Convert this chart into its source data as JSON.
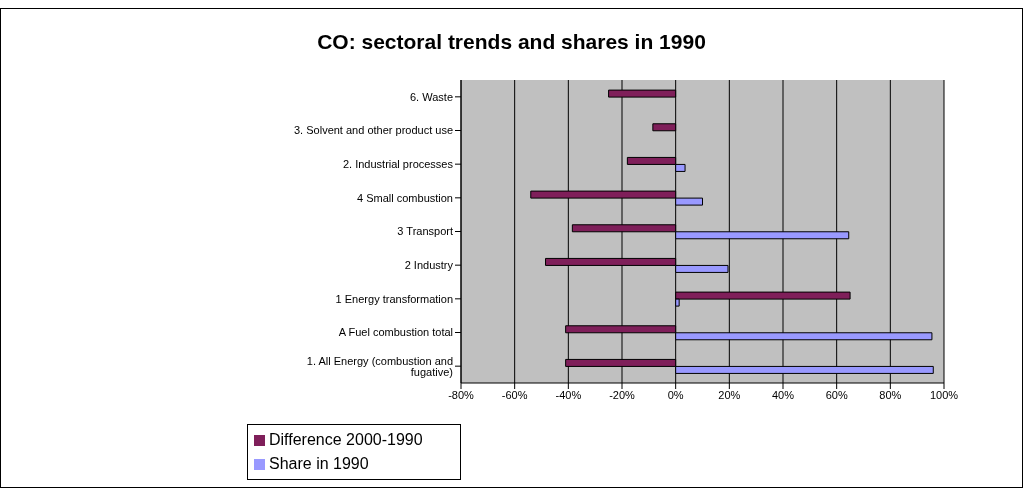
{
  "chart_data": {
    "type": "bar",
    "orientation": "horizontal",
    "title": "CO: sectoral trends and shares in 1990",
    "categories": [
      "6. Waste",
      "3. Solvent and other product use",
      "2. Industrial processes",
      "4 Small combustion",
      "3 Transport",
      "2 Industry ",
      "1 Energy transformation",
      "A Fuel combustion   total",
      "1. All Energy (combustion and fugative)"
    ],
    "series": [
      {
        "name": "Difference 2000-1990",
        "color": "#7f1f5a",
        "values": [
          -25,
          -8.5,
          -18,
          -54,
          -38.5,
          -48.5,
          65,
          -41,
          -41
        ]
      },
      {
        "name": "Share in 1990",
        "color": "#9999ff",
        "values": [
          null,
          null,
          3.5,
          10,
          64.5,
          19.5,
          1.3,
          95.5,
          96
        ]
      }
    ],
    "xlim": [
      -80,
      100
    ],
    "xticks": [
      {
        "value": -80,
        "label": "-80%"
      },
      {
        "value": -60,
        "label": "-60%"
      },
      {
        "value": -40,
        "label": "-40%"
      },
      {
        "value": -20,
        "label": "-20%"
      },
      {
        "value": 0,
        "label": "0%"
      },
      {
        "value": 20,
        "label": "20%"
      },
      {
        "value": 40,
        "label": "40%"
      },
      {
        "value": 60,
        "label": "60%"
      },
      {
        "value": 80,
        "label": "80%"
      },
      {
        "value": 100,
        "label": "100%"
      }
    ],
    "grid": "x",
    "legend": "bottom left"
  }
}
